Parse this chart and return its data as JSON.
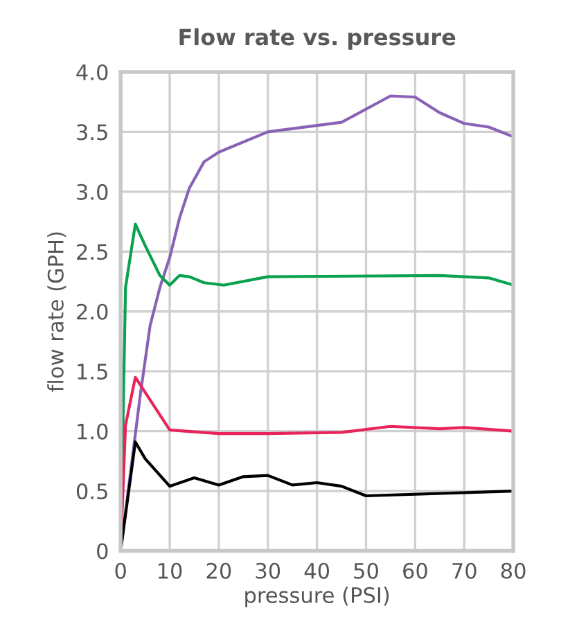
{
  "chart_data": {
    "type": "line",
    "title": "Flow rate vs. pressure",
    "xlabel": "pressure (PSI)",
    "ylabel": "flow rate (GPH)",
    "xlim": [
      0,
      80
    ],
    "xticks": [
      0,
      10,
      20,
      30,
      40,
      50,
      60,
      70,
      80
    ],
    "ylim": [
      0,
      4.0
    ],
    "yticks": [
      {
        "value": 0,
        "label": "0"
      },
      {
        "value": 0.5,
        "label": "0.5"
      },
      {
        "value": 1.0,
        "label": "1.0"
      },
      {
        "value": 1.5,
        "label": "1.5"
      },
      {
        "value": 2.0,
        "label": "2.0"
      },
      {
        "value": 2.5,
        "label": "2.5"
      },
      {
        "value": 3.0,
        "label": "3.0"
      },
      {
        "value": 3.5,
        "label": "3.5"
      },
      {
        "value": 4.0,
        "label": "4.0"
      }
    ],
    "grid": true,
    "marker": "none",
    "line_style": "solid",
    "series": [
      {
        "color": "#8a62b5",
        "x": [
          0,
          4,
          6,
          8,
          10,
          12,
          14,
          17,
          20,
          30,
          45,
          55,
          60,
          65,
          70,
          75,
          80
        ],
        "values": [
          0,
          1.3,
          1.88,
          2.2,
          2.45,
          2.78,
          3.03,
          3.25,
          3.33,
          3.5,
          3.58,
          3.8,
          3.79,
          3.66,
          3.57,
          3.54,
          3.46
        ]
      },
      {
        "color": "#0aa14f",
        "x": [
          0,
          1,
          3,
          5,
          8,
          10,
          12,
          14,
          17,
          21,
          30,
          65,
          75,
          80
        ],
        "values": [
          0,
          2.2,
          2.73,
          2.55,
          2.3,
          2.22,
          2.3,
          2.29,
          2.24,
          2.22,
          2.29,
          2.3,
          2.28,
          2.22
        ]
      },
      {
        "color": "#e8245a",
        "x": [
          0,
          1,
          3,
          10,
          20,
          30,
          45,
          55,
          65,
          70,
          80
        ],
        "values": [
          0,
          1.05,
          1.45,
          1.01,
          0.98,
          0.98,
          0.99,
          1.04,
          1.02,
          1.03,
          1.0
        ]
      },
      {
        "color": "#000000",
        "x": [
          0,
          3,
          5,
          10,
          15,
          20,
          25,
          30,
          35,
          40,
          45,
          50,
          80
        ],
        "values": [
          0,
          0.91,
          0.77,
          0.54,
          0.61,
          0.55,
          0.62,
          0.63,
          0.55,
          0.57,
          0.54,
          0.46,
          0.5
        ]
      }
    ]
  }
}
